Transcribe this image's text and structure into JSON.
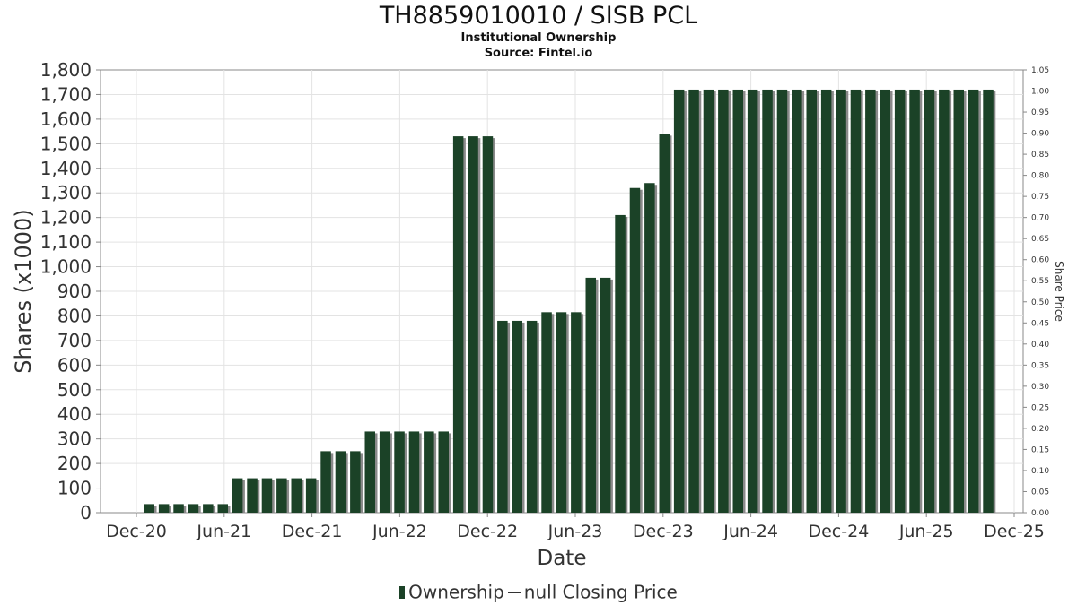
{
  "chart_data": {
    "type": "bar",
    "title": "TH8859010010 / SISB PCL",
    "subtitle": "Institutional Ownership",
    "source": "Source: Fintel.io",
    "xlabel": "Date",
    "ylabel": "Shares (x1000)",
    "y2label": "Share Price",
    "ylim": [
      0,
      1800
    ],
    "y2lim": [
      0,
      1.05
    ],
    "yticks": [
      "0",
      "100",
      "200",
      "300",
      "400",
      "500",
      "600",
      "700",
      "800",
      "900",
      "1,000",
      "1,100",
      "1,200",
      "1,300",
      "1,400",
      "1,500",
      "1,600",
      "1,700",
      "1,800"
    ],
    "y2ticks": [
      "0.00",
      "0.05",
      "0.10",
      "0.15",
      "0.20",
      "0.25",
      "0.30",
      "0.35",
      "0.40",
      "0.45",
      "0.50",
      "0.55",
      "0.60",
      "0.65",
      "0.70",
      "0.75",
      "0.80",
      "0.85",
      "0.90",
      "0.95",
      "1.00",
      "1.05"
    ],
    "xticks": [
      "Dec-20",
      "Jun-21",
      "Dec-21",
      "Jun-22",
      "Dec-22",
      "Jun-23",
      "Dec-23",
      "Jun-24",
      "Dec-24",
      "Jun-25",
      "Dec-25"
    ],
    "grid": true,
    "legend_placement": "bottom",
    "series": [
      {
        "name": "Ownership",
        "color": "#1b4227",
        "values": [
          35,
          35,
          35,
          35,
          35,
          35,
          140,
          140,
          140,
          140,
          140,
          140,
          250,
          250,
          250,
          330,
          330,
          330,
          330,
          330,
          330,
          1530,
          1530,
          1530,
          780,
          780,
          780,
          815,
          815,
          815,
          955,
          955,
          1210,
          1320,
          1340,
          1540,
          1720,
          1720,
          1720,
          1720,
          1720,
          1720,
          1720,
          1720,
          1720,
          1720,
          1720,
          1720,
          1720,
          1720,
          1720,
          1720,
          1720,
          1720,
          1720,
          1720,
          1720,
          1720
        ]
      }
    ],
    "legend": [
      {
        "label": "Ownership",
        "symbol": "bar"
      },
      {
        "label": "null Closing Price",
        "symbol": "line"
      }
    ]
  }
}
